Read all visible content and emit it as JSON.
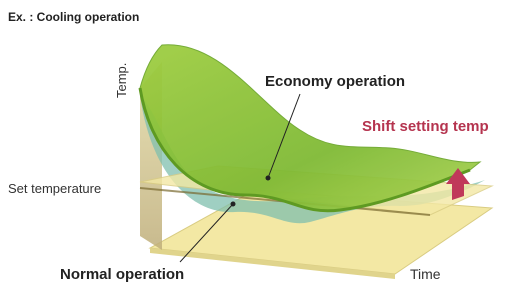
{
  "header": {
    "title": "Ex. : Cooling operation"
  },
  "axes": {
    "y_label": "Temp.",
    "x_label": "Time"
  },
  "labels": {
    "set_temperature": "Set temperature",
    "economy": "Economy operation",
    "normal": "Normal operation",
    "shift": "Shift setting temp"
  }
}
